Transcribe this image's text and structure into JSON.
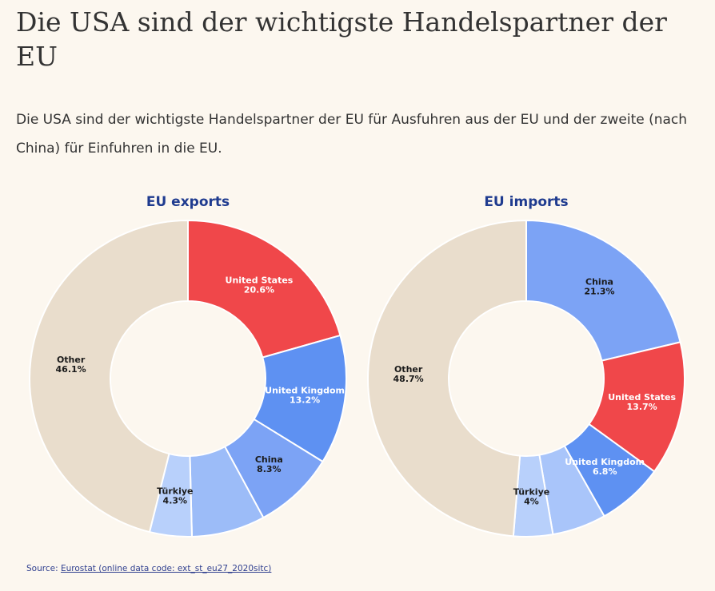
{
  "title": "Die USA sind der wichtigste Handelspartner der EU",
  "subtitle": "Die USA sind der wichtigste Handelspartner der EU für Ausfuhren aus der EU und der zweite (nach China) für Einfuhren in die EU.",
  "source": {
    "prefix": "Source:",
    "link_text": "Eurostat (online data code: ext_st_eu27_2020sitc)"
  },
  "colors": {
    "united_states": "#f0474a",
    "united_kingdom": "#5e91f2",
    "china": "#7ca3f5",
    "turkiye": "#b8d0fb",
    "unlabeled_1": "#a9c5fa",
    "unlabeled_2": "#9cbcf8",
    "other": "#e9ddcc",
    "title": "#1f3b8f"
  },
  "chart_data": [
    {
      "type": "pie",
      "donut": true,
      "title": "EU exports",
      "slices": [
        {
          "label": "United States",
          "value": 20.6,
          "display": "20.6%",
          "color": "#f0474a"
        },
        {
          "label": "United Kingdom",
          "value": 13.2,
          "display": "13.2%",
          "color": "#5e91f2"
        },
        {
          "label": "China",
          "value": 8.3,
          "display": "8.3%",
          "color": "#7ca3f5"
        },
        {
          "label": "",
          "value": 7.5,
          "display": "",
          "color": "#9cbcf8"
        },
        {
          "label": "Türkiye",
          "value": 4.3,
          "display": "4.3%",
          "color": "#b8d0fb"
        },
        {
          "label": "Other",
          "value": 46.1,
          "display": "46.1%",
          "color": "#e9ddcc"
        }
      ]
    },
    {
      "type": "pie",
      "donut": true,
      "title": "EU imports",
      "slices": [
        {
          "label": "China",
          "value": 21.3,
          "display": "21.3%",
          "color": "#7ca3f5"
        },
        {
          "label": "United States",
          "value": 13.7,
          "display": "13.7%",
          "color": "#f0474a"
        },
        {
          "label": "United Kingdom",
          "value": 6.8,
          "display": "6.8%",
          "color": "#5e91f2"
        },
        {
          "label": "",
          "value": 5.5,
          "display": "",
          "color": "#a9c5fa"
        },
        {
          "label": "Türkiye",
          "value": 4,
          "display": "4%",
          "color": "#b8d0fb"
        },
        {
          "label": "Other",
          "value": 48.7,
          "display": "48.7%",
          "color": "#e9ddcc"
        }
      ]
    }
  ]
}
